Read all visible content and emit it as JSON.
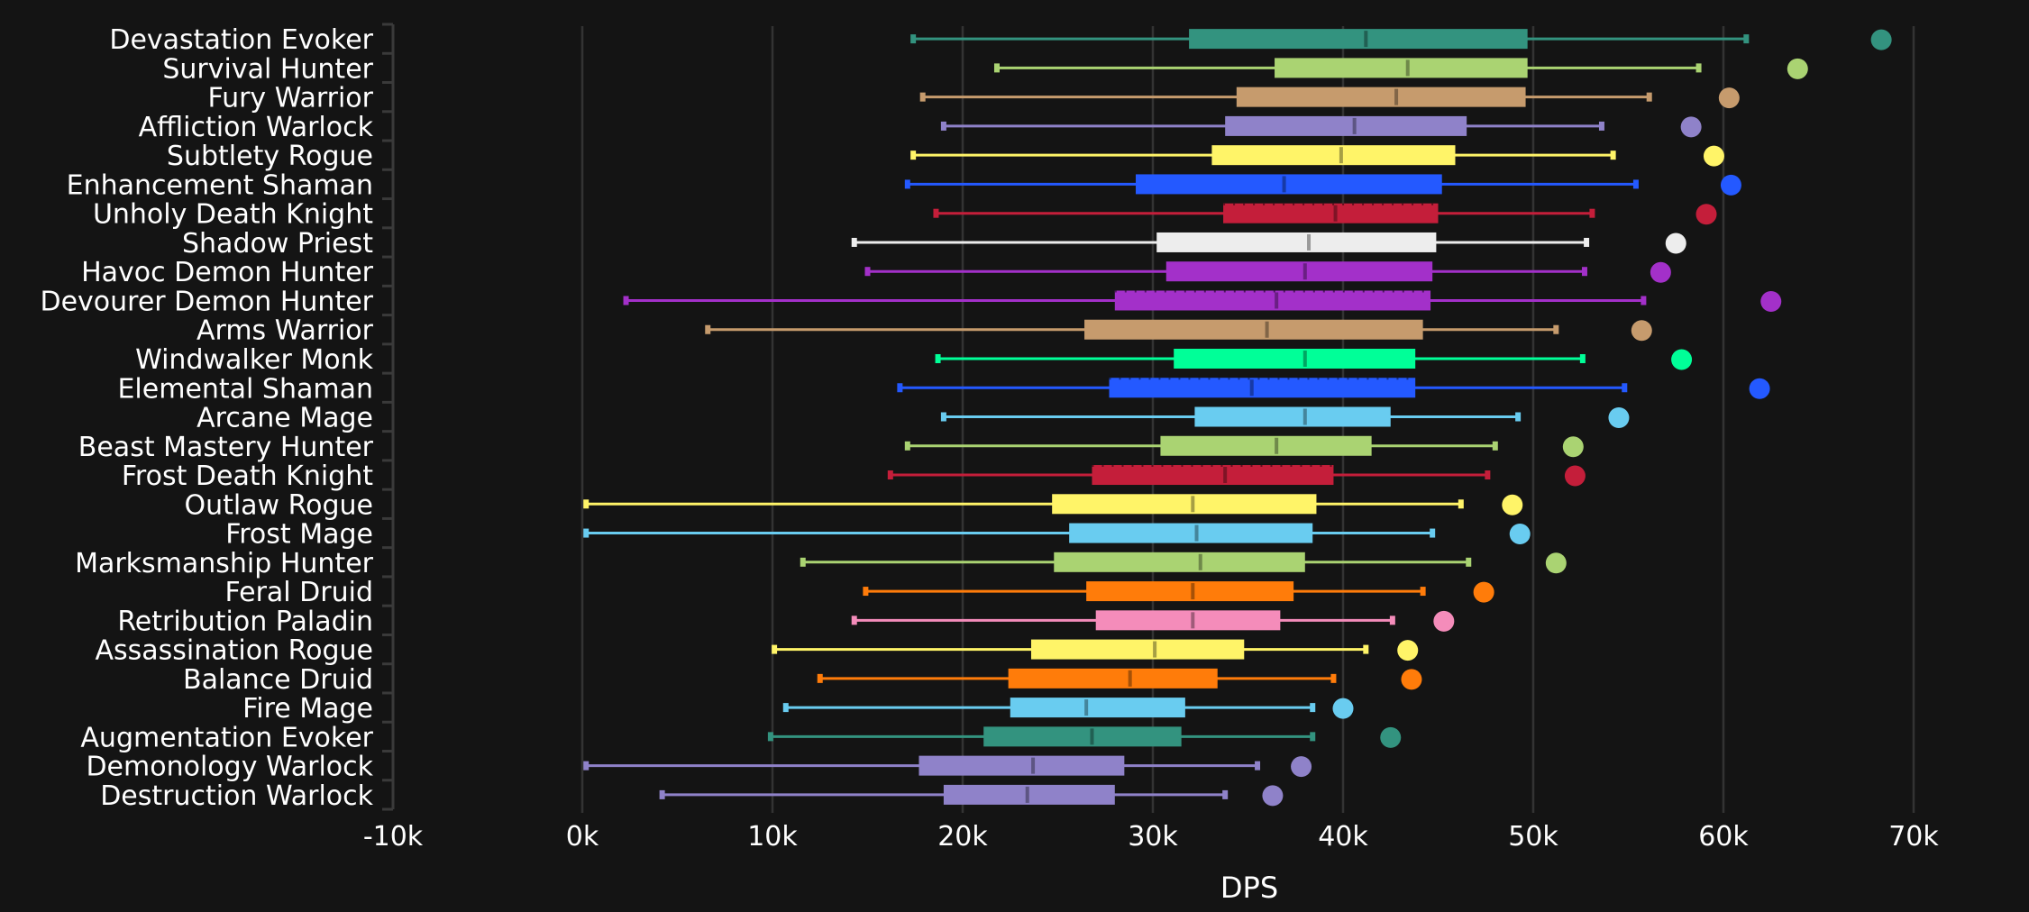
{
  "chart_data": {
    "type": "boxplot",
    "orientation": "horizontal",
    "title": "",
    "xlabel": "DPS",
    "ylabel": "",
    "xlim": [
      -10000,
      76000
    ],
    "x_ticks": [
      -10000,
      0,
      10000,
      20000,
      30000,
      40000,
      50000,
      60000,
      70000
    ],
    "x_tick_labels": [
      "-10k",
      "0k",
      "10k",
      "20k",
      "30k",
      "40k",
      "50k",
      "60k",
      "70k"
    ],
    "grid": "vertical",
    "legend": "none",
    "series_fields": [
      "whisker_low",
      "q1",
      "median",
      "q3",
      "whisker_high",
      "max_point"
    ],
    "categories": [
      {
        "name": "Devastation Evoker",
        "color": "#33937F",
        "whisker_low": 17400,
        "q1": 31900,
        "median": 41200,
        "q3": 49700,
        "whisker_high": 61200,
        "max_point": 68300,
        "dense": false
      },
      {
        "name": "Survival Hunter",
        "color": "#AAD372",
        "whisker_low": 21800,
        "q1": 36400,
        "median": 43400,
        "q3": 49700,
        "whisker_high": 58700,
        "max_point": 63900,
        "dense": false
      },
      {
        "name": "Fury Warrior",
        "color": "#C69B6D",
        "whisker_low": 17900,
        "q1": 34400,
        "median": 42800,
        "q3": 49600,
        "whisker_high": 56100,
        "max_point": 60300,
        "dense": false
      },
      {
        "name": "Affliction Warlock",
        "color": "#8F82C9",
        "whisker_low": 19000,
        "q1": 33800,
        "median": 40600,
        "q3": 46500,
        "whisker_high": 53600,
        "max_point": 58300,
        "dense": false
      },
      {
        "name": "Subtlety Rogue",
        "color": "#FFF468",
        "whisker_low": 17400,
        "q1": 33100,
        "median": 39900,
        "q3": 45900,
        "whisker_high": 54200,
        "max_point": 59500,
        "dense": false
      },
      {
        "name": "Enhancement Shaman",
        "color": "#2459FF",
        "whisker_low": 17100,
        "q1": 29100,
        "median": 36900,
        "q3": 45200,
        "whisker_high": 55400,
        "max_point": 60400,
        "dense": false
      },
      {
        "name": "Unholy Death Knight",
        "color": "#C41E3A",
        "whisker_low": 18600,
        "q1": 33700,
        "median": 39600,
        "q3": 45000,
        "whisker_high": 53100,
        "max_point": 59100,
        "dense": true
      },
      {
        "name": "Shadow Priest",
        "color": "#EDEDED",
        "whisker_low": 14300,
        "q1": 30200,
        "median": 38200,
        "q3": 44900,
        "whisker_high": 52800,
        "max_point": 57500,
        "dense": false
      },
      {
        "name": "Havoc Demon Hunter",
        "color": "#A330C9",
        "whisker_low": 15000,
        "q1": 30700,
        "median": 38000,
        "q3": 44700,
        "whisker_high": 52700,
        "max_point": 56700,
        "dense": false
      },
      {
        "name": "Devourer Demon Hunter",
        "color": "#A330C9",
        "whisker_low": 2300,
        "q1": 28000,
        "median": 36500,
        "q3": 44600,
        "whisker_high": 55800,
        "max_point": 62500,
        "dense": true
      },
      {
        "name": "Arms Warrior",
        "color": "#C69B6D",
        "whisker_low": 6600,
        "q1": 26400,
        "median": 36000,
        "q3": 44200,
        "whisker_high": 51200,
        "max_point": 55700,
        "dense": false
      },
      {
        "name": "Windwalker Monk",
        "color": "#00FF98",
        "whisker_low": 18700,
        "q1": 31100,
        "median": 38000,
        "q3": 43800,
        "whisker_high": 52600,
        "max_point": 57800,
        "dense": false
      },
      {
        "name": "Elemental Shaman",
        "color": "#2459FF",
        "whisker_low": 16700,
        "q1": 27700,
        "median": 35200,
        "q3": 43800,
        "whisker_high": 54800,
        "max_point": 61900,
        "dense": true
      },
      {
        "name": "Arcane Mage",
        "color": "#69CCF0",
        "whisker_low": 19000,
        "q1": 32200,
        "median": 38000,
        "q3": 42500,
        "whisker_high": 49200,
        "max_point": 54500,
        "dense": false
      },
      {
        "name": "Beast Mastery Hunter",
        "color": "#AAD372",
        "whisker_low": 17100,
        "q1": 30400,
        "median": 36500,
        "q3": 41500,
        "whisker_high": 48000,
        "max_point": 52100,
        "dense": false
      },
      {
        "name": "Frost Death Knight",
        "color": "#C41E3A",
        "whisker_low": 16200,
        "q1": 26800,
        "median": 33800,
        "q3": 39500,
        "whisker_high": 47600,
        "max_point": 52200,
        "dense": true
      },
      {
        "name": "Outlaw Rogue",
        "color": "#FFF468",
        "whisker_low": 200,
        "q1": 24700,
        "median": 32100,
        "q3": 38600,
        "whisker_high": 46200,
        "max_point": 48900,
        "dense": false
      },
      {
        "name": "Frost Mage",
        "color": "#69CCF0",
        "whisker_low": 200,
        "q1": 25600,
        "median": 32300,
        "q3": 38400,
        "whisker_high": 44700,
        "max_point": 49300,
        "dense": false
      },
      {
        "name": "Marksmanship Hunter",
        "color": "#AAD372",
        "whisker_low": 11600,
        "q1": 24800,
        "median": 32500,
        "q3": 38000,
        "whisker_high": 46600,
        "max_point": 51200,
        "dense": false
      },
      {
        "name": "Feral Druid",
        "color": "#FF7C0A",
        "whisker_low": 14900,
        "q1": 26500,
        "median": 32100,
        "q3": 37400,
        "whisker_high": 44200,
        "max_point": 47400,
        "dense": false
      },
      {
        "name": "Retribution Paladin",
        "color": "#F48CBA",
        "whisker_low": 14300,
        "q1": 27000,
        "median": 32100,
        "q3": 36700,
        "whisker_high": 42600,
        "max_point": 45300,
        "dense": false
      },
      {
        "name": "Assassination Rogue",
        "color": "#FFF468",
        "whisker_low": 10100,
        "q1": 23600,
        "median": 30100,
        "q3": 34800,
        "whisker_high": 41200,
        "max_point": 43400,
        "dense": false
      },
      {
        "name": "Balance Druid",
        "color": "#FF7C0A",
        "whisker_low": 12500,
        "q1": 22400,
        "median": 28800,
        "q3": 33400,
        "whisker_high": 39500,
        "max_point": 43600,
        "dense": false
      },
      {
        "name": "Fire Mage",
        "color": "#69CCF0",
        "whisker_low": 10700,
        "q1": 22500,
        "median": 26500,
        "q3": 31700,
        "whisker_high": 38400,
        "max_point": 40000,
        "dense": false
      },
      {
        "name": "Augmentation Evoker",
        "color": "#33937F",
        "whisker_low": 9900,
        "q1": 21100,
        "median": 26800,
        "q3": 31500,
        "whisker_high": 38400,
        "max_point": 42500,
        "dense": false
      },
      {
        "name": "Demonology Warlock",
        "color": "#8F82C9",
        "whisker_low": 200,
        "q1": 17700,
        "median": 23700,
        "q3": 28500,
        "whisker_high": 35500,
        "max_point": 37800,
        "dense": false
      },
      {
        "name": "Destruction Warlock",
        "color": "#8F82C9",
        "whisker_low": 4200,
        "q1": 19000,
        "median": 23400,
        "q3": 28000,
        "whisker_high": 33800,
        "max_point": 36300,
        "dense": false
      }
    ]
  },
  "colors": {
    "background": "#141414",
    "grid": "#333333",
    "axis": "#3a3a3a",
    "text": "#ffffff"
  }
}
